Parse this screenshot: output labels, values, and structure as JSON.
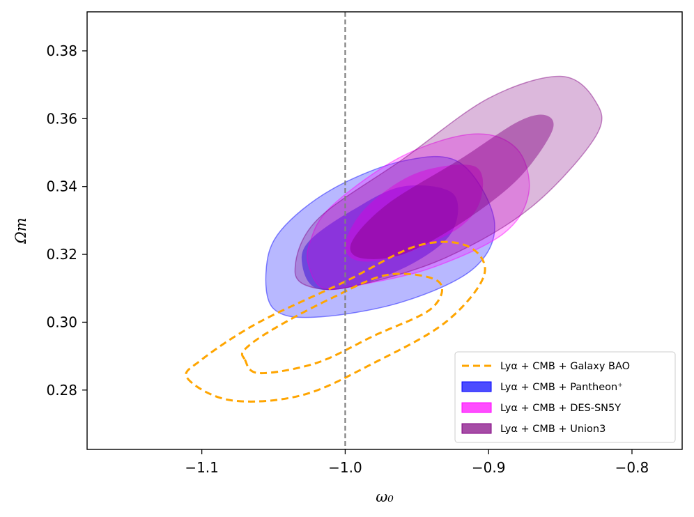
{
  "chart_data": {
    "type": "contour",
    "xlabel": "ω₀",
    "ylabel": "Ωm",
    "xlim": [
      -1.18,
      -0.765
    ],
    "ylim": [
      0.2625,
      0.3915
    ],
    "xticks": [
      -1.1,
      -1.0,
      -0.9,
      -0.8
    ],
    "xtick_labels": [
      "−1.1",
      "−1.0",
      "−0.9",
      "−0.8"
    ],
    "yticks": [
      0.28,
      0.3,
      0.32,
      0.34,
      0.36,
      0.38
    ],
    "ytick_labels": [
      "0.28",
      "0.30",
      "0.32",
      "0.34",
      "0.36",
      "0.38"
    ],
    "reference_line": {
      "orientation": "vertical",
      "x": -1.0,
      "style": "dashed",
      "color": "#808080"
    },
    "legend_position": "lower-right",
    "series": [
      {
        "name": "Lyα + CMB + Galaxy BAO",
        "style": "dashed-outline",
        "color": "#ffa500",
        "contours": {
          "outer": [
            [
              -1.11,
              0.2835
            ],
            [
              -1.08,
              0.277
            ],
            [
              -1.03,
              0.2785
            ],
            [
              -0.98,
              0.288
            ],
            [
              -0.93,
              0.3
            ],
            [
              -0.903,
              0.314
            ],
            [
              -0.915,
              0.3225
            ],
            [
              -0.95,
              0.3225
            ],
            [
              -1.0,
              0.312
            ],
            [
              -1.06,
              0.3
            ],
            [
              -1.1,
              0.289
            ]
          ],
          "inner": [
            [
              -1.07,
              0.289
            ],
            [
              -1.06,
              0.285
            ],
            [
              -1.02,
              0.288
            ],
            [
              -0.98,
              0.296
            ],
            [
              -0.94,
              0.304
            ],
            [
              -0.935,
              0.312
            ],
            [
              -0.97,
              0.314
            ],
            [
              -1.01,
              0.307
            ],
            [
              -1.05,
              0.298
            ],
            [
              -1.07,
              0.292
            ]
          ]
        }
      },
      {
        "name": "Lyα + CMB + Pantheon⁺",
        "style": "filled",
        "color": "#0000ff",
        "contours": {
          "outer": [
            [
              -1.055,
              0.316
            ],
            [
              -1.05,
              0.304
            ],
            [
              -1.02,
              0.3015
            ],
            [
              -0.96,
              0.306
            ],
            [
              -0.91,
              0.316
            ],
            [
              -0.896,
              0.33
            ],
            [
              -0.92,
              0.347
            ],
            [
              -0.96,
              0.3475
            ],
            [
              -1.01,
              0.339
            ],
            [
              -1.045,
              0.327
            ]
          ],
          "inner": [
            [
              -1.03,
              0.317
            ],
            [
              -1.02,
              0.31
            ],
            [
              -0.99,
              0.311
            ],
            [
              -0.95,
              0.318
            ],
            [
              -0.925,
              0.327
            ],
            [
              -0.925,
              0.338
            ],
            [
              -0.96,
              0.34
            ],
            [
              -0.995,
              0.333
            ],
            [
              -1.025,
              0.324
            ]
          ]
        }
      },
      {
        "name": "Lyα + CMB + DES-SN5Y",
        "style": "filled",
        "color": "#ff00ff",
        "contours": {
          "outer": [
            [
              -1.025,
              0.316
            ],
            [
              -1.015,
              0.31
            ],
            [
              -0.99,
              0.311
            ],
            [
              -0.94,
              0.316
            ],
            [
              -0.89,
              0.326
            ],
            [
              -0.872,
              0.338
            ],
            [
              -0.88,
              0.351
            ],
            [
              -0.91,
              0.3555
            ],
            [
              -0.96,
              0.349
            ],
            [
              -1.01,
              0.334
            ],
            [
              -1.025,
              0.323
            ]
          ],
          "inner": [
            [
              -1.0,
              0.323
            ],
            [
              -0.99,
              0.318
            ],
            [
              -0.96,
              0.32
            ],
            [
              -0.92,
              0.328
            ],
            [
              -0.905,
              0.337
            ],
            [
              -0.91,
              0.346
            ],
            [
              -0.95,
              0.344
            ],
            [
              -0.985,
              0.334
            ]
          ]
        }
      },
      {
        "name": "Lyα + CMB + Union3",
        "style": "filled",
        "color": "#800080",
        "contours": {
          "outer": [
            [
              -1.035,
              0.315
            ],
            [
              -1.02,
              0.31
            ],
            [
              -0.99,
              0.311
            ],
            [
              -0.93,
              0.319
            ],
            [
              -0.87,
              0.334
            ],
            [
              -0.825,
              0.355
            ],
            [
              -0.826,
              0.3655
            ],
            [
              -0.85,
              0.3725
            ],
            [
              -0.9,
              0.366
            ],
            [
              -0.96,
              0.348
            ],
            [
              -1.02,
              0.33
            ]
          ],
          "inner": [
            [
              -0.995,
              0.324
            ],
            [
              -0.99,
              0.319
            ],
            [
              -0.96,
              0.32
            ],
            [
              -0.92,
              0.329
            ],
            [
              -0.88,
              0.342
            ],
            [
              -0.856,
              0.356
            ],
            [
              -0.86,
              0.361
            ],
            [
              -0.88,
              0.359
            ],
            [
              -0.92,
              0.348
            ],
            [
              -0.97,
              0.335
            ]
          ]
        }
      }
    ]
  }
}
